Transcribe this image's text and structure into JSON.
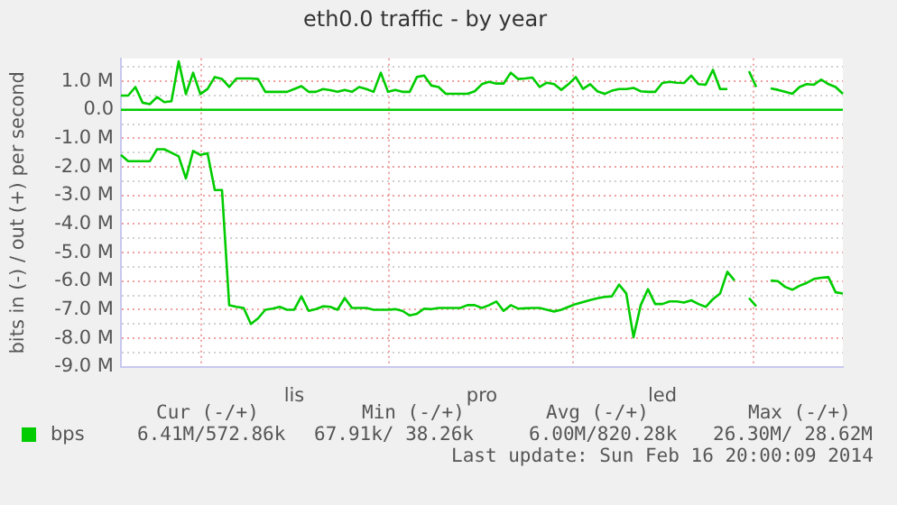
{
  "chart_data": {
    "type": "line",
    "title": "eth0.0 traffic - by year",
    "ylabel": "bits in (-) / out (+) per second",
    "categories": [
      null,
      null,
      null,
      null,
      null,
      null,
      null,
      null,
      null,
      null,
      null,
      null,
      null,
      null,
      null,
      null,
      null,
      null,
      null,
      null,
      null,
      null,
      null,
      null,
      "lis",
      null,
      null,
      null,
      null,
      null,
      null,
      null,
      null,
      null,
      null,
      null,
      null,
      null,
      null,
      null,
      null,
      null,
      null,
      null,
      null,
      null,
      null,
      null,
      null,
      null,
      "pro",
      null,
      null,
      null,
      null,
      null,
      null,
      null,
      null,
      null,
      null,
      null,
      null,
      null,
      null,
      null,
      null,
      null,
      null,
      null,
      null,
      null,
      null,
      null,
      null,
      "led",
      null,
      null,
      null,
      null,
      null,
      null,
      null,
      null,
      null,
      null,
      null,
      null,
      null,
      null,
      null,
      null,
      null,
      null,
      null,
      null,
      null,
      null,
      null,
      null,
      null
    ],
    "ylim": [
      -9,
      1.8
    ],
    "yticks": [
      {
        "value": -9,
        "label": "-9.0 M"
      },
      {
        "value": -8.5,
        "label": null
      },
      {
        "value": -8,
        "label": "-8.0 M"
      },
      {
        "value": -7.5,
        "label": null
      },
      {
        "value": -7,
        "label": "-7.0 M"
      },
      {
        "value": -6.5,
        "label": null
      },
      {
        "value": -6,
        "label": "-6.0 M"
      },
      {
        "value": -5.5,
        "label": null
      },
      {
        "value": -5,
        "label": "-5.0 M"
      },
      {
        "value": -4.5,
        "label": null
      },
      {
        "value": -4,
        "label": "-4.0 M"
      },
      {
        "value": -3.5,
        "label": null
      },
      {
        "value": -3,
        "label": "-3.0 M"
      },
      {
        "value": -2.5,
        "label": null
      },
      {
        "value": -2,
        "label": "-2.0 M"
      },
      {
        "value": -1.5,
        "label": null
      },
      {
        "value": -1,
        "label": "-1.0 M"
      },
      {
        "value": -0.5,
        "label": null
      },
      {
        "value": 0,
        "label": "0.0"
      },
      {
        "value": 0.5,
        "label": null
      },
      {
        "value": 1,
        "label": "1.0 M"
      },
      {
        "value": 1.5,
        "label": null
      }
    ],
    "grid": true,
    "marker": "none",
    "legend": "bottom left",
    "series": [
      {
        "name": "bps",
        "color": "#00cc00",
        "values": [
          0.5,
          0.5,
          0.8,
          0.25,
          0.2,
          0.45,
          0.27,
          0.3,
          1.7,
          0.55,
          1.3,
          0.55,
          0.73,
          1.15,
          1.08,
          0.8,
          1.1,
          1.1,
          1.1,
          1.08,
          0.63,
          0.63,
          0.63,
          0.63,
          0.73,
          0.83,
          0.63,
          0.63,
          0.73,
          0.69,
          0.63,
          0.7,
          0.63,
          0.8,
          0.73,
          0.63,
          1.3,
          0.63,
          0.7,
          0.63,
          0.63,
          1.15,
          1.2,
          0.85,
          0.8,
          0.56,
          0.56,
          0.56,
          0.56,
          0.65,
          0.9,
          0.98,
          0.92,
          0.92,
          1.3,
          1.08,
          1.1,
          1.13,
          0.8,
          0.95,
          0.9,
          0.7,
          0.9,
          1.15,
          0.73,
          0.9,
          0.65,
          0.56,
          0.67,
          0.73,
          0.73,
          0.77,
          0.65,
          0.63,
          0.63,
          0.94,
          0.98,
          0.95,
          0.94,
          1.2,
          0.9,
          0.88,
          1.4,
          0.73,
          0.73,
          null,
          null,
          1.35,
          0.8,
          null,
          0.75,
          0.7,
          0.63,
          0.56,
          0.8,
          0.9,
          0.88,
          1.06,
          0.9,
          0.8,
          0.56
        ]
      },
      {
        "color": "#00cc00",
        "values": [
          -1.58,
          -1.8,
          -1.8,
          -1.8,
          -1.8,
          -1.38,
          -1.38,
          -1.5,
          -1.63,
          -2.4,
          -1.44,
          -1.58,
          -1.52,
          -2.81,
          -2.81,
          -6.84,
          -6.9,
          -6.94,
          -7.5,
          -7.3,
          -7.0,
          -6.96,
          -6.9,
          -7.0,
          -7.0,
          -6.53,
          -7.04,
          -6.98,
          -6.88,
          -6.9,
          -7.0,
          -6.59,
          -6.94,
          -6.94,
          -6.94,
          -7.0,
          -7.0,
          -7.0,
          -6.98,
          -7.04,
          -7.2,
          -7.14,
          -6.96,
          -6.98,
          -6.94,
          -6.94,
          -6.94,
          -6.94,
          -6.84,
          -6.84,
          -6.94,
          -6.84,
          -6.71,
          -7.04,
          -6.84,
          -6.96,
          -6.95,
          -6.94,
          -6.94,
          -7.0,
          -7.06,
          -7.0,
          -6.9,
          -6.8,
          -6.73,
          -6.66,
          -6.6,
          -6.55,
          -6.53,
          -6.12,
          -6.43,
          -7.96,
          -6.84,
          -6.28,
          -6.8,
          -6.8,
          -6.71,
          -6.71,
          -6.75,
          -6.67,
          -6.8,
          -6.9,
          -6.63,
          -6.43,
          -5.67,
          -5.98,
          null,
          -6.59,
          -6.88,
          null,
          -5.98,
          -6.0,
          -6.2,
          -6.3,
          -6.16,
          -6.06,
          -5.92,
          -5.88,
          -5.86,
          -6.39,
          -6.43
        ]
      }
    ],
    "ref_lines": [
      {
        "axis": "y",
        "value": 0,
        "color": "#00cc00"
      }
    ],
    "annotations": [
      "Cur (-/+)",
      "Min (-/+)",
      "Avg (-/+)",
      "Max (-/+)",
      "6.41M/572.86k",
      "67.91k/ 38.26k",
      "6.00M/820.28k",
      "26.30M/ 28.62M",
      "Last update: Sun Feb 16 20:00:09 2014"
    ]
  }
}
